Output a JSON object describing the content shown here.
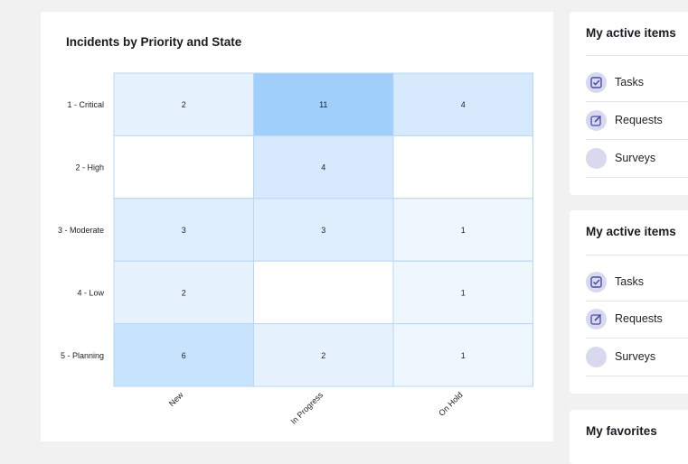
{
  "chart_card": {
    "title": "Incidents by Priority and State"
  },
  "chart_data": {
    "type": "heatmap",
    "title": "Incidents by Priority and State",
    "x_categories": [
      "New",
      "In Progress",
      "On Hold"
    ],
    "y_categories": [
      "1 - Critical",
      "2 - High",
      "3 - Moderate",
      "4 - Low",
      "5 - Planning"
    ],
    "values": [
      [
        2,
        11,
        4
      ],
      [
        null,
        4,
        null
      ],
      [
        3,
        3,
        1
      ],
      [
        2,
        null,
        1
      ],
      [
        6,
        2,
        1
      ]
    ],
    "colors": {
      "min": "#eef6fe",
      "max": "#a1cffb",
      "empty": "#ffffff",
      "grid": "#b6d8f5"
    }
  },
  "active_items_1": {
    "title": "My active items",
    "items": [
      {
        "label": "Tasks",
        "icon": "checkbox-icon"
      },
      {
        "label": "Requests",
        "icon": "edit-icon"
      },
      {
        "label": "Surveys",
        "icon": "survey-icon"
      }
    ]
  },
  "active_items_2": {
    "title": "My active items",
    "items": [
      {
        "label": "Tasks",
        "icon": "checkbox-icon"
      },
      {
        "label": "Requests",
        "icon": "edit-icon"
      },
      {
        "label": "Surveys",
        "icon": "survey-icon"
      }
    ]
  },
  "favorites": {
    "title": "My favorites"
  },
  "theme": {
    "icon_circle": "#d8d8ef",
    "icon_color": "#4b4ba8"
  }
}
